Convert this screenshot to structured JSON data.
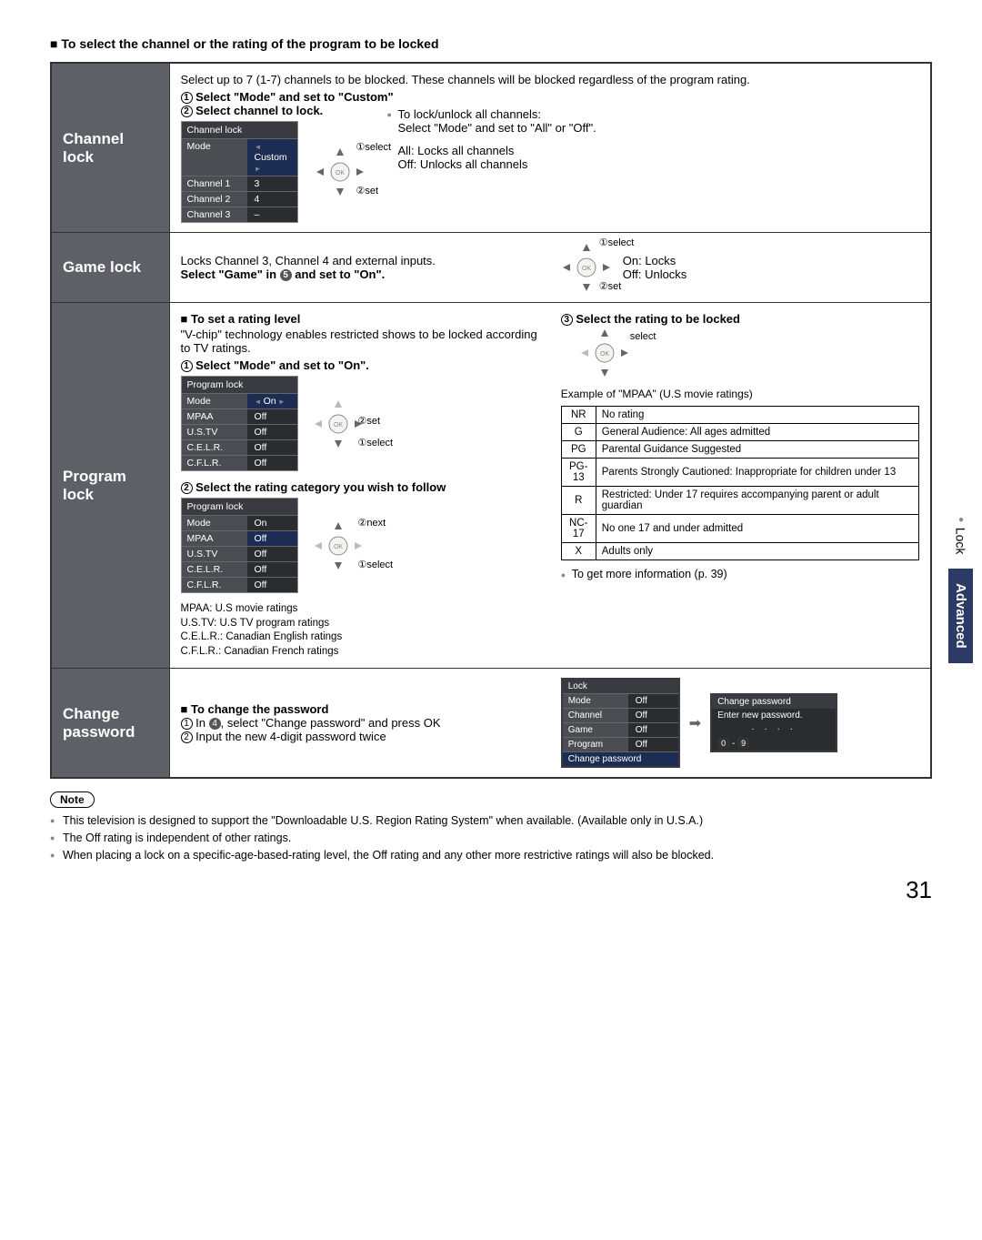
{
  "page": {
    "heading": "To select the channel or the rating of the program to be locked",
    "number": "31"
  },
  "sidetabs": {
    "lock": "Lock",
    "advanced": "Advanced"
  },
  "channel_lock": {
    "label": "Channel lock",
    "intro": "Select up to 7 (1-7) channels to be blocked. These channels will be blocked regardless of the program rating.",
    "step1": "Select \"Mode\" and set to \"Custom\"",
    "step2": "Select channel to lock.",
    "menu_title": "Channel lock",
    "rows": [
      {
        "l": "Mode",
        "r": "Custom",
        "sel": true,
        "arrows": true
      },
      {
        "l": "Channel 1",
        "r": "3"
      },
      {
        "l": "Channel 2",
        "r": "4"
      },
      {
        "l": "Channel 3",
        "r": "–"
      }
    ],
    "dpad_labels": {
      "a": "①select",
      "b": "②set"
    },
    "r_line1": "To lock/unlock all channels:",
    "r_line2": "Select \"Mode\" and set to \"All\" or \"Off\".",
    "r_line3": "All:  Locks all channels",
    "r_line4": "Off: Unlocks all channels"
  },
  "game_lock": {
    "label": "Game lock",
    "line1": "Locks Channel 3, Channel 4 and external inputs.",
    "line2_a": "Select \"Game\" in ",
    "line2_b": " and set to \"On\".",
    "dpad_labels": {
      "a": "①select",
      "b": "②set"
    },
    "on": "On:  Locks",
    "off": "Off:  Unlocks"
  },
  "program_lock": {
    "label": "Program lock",
    "h1": "To set a rating level",
    "desc": "\"V-chip\" technology enables restricted shows to be locked according to TV ratings.",
    "step1": "Select \"Mode\" and set to \"On\".",
    "menu_title": "Program lock",
    "rows1": [
      {
        "l": "Mode",
        "r": "On",
        "sel": true,
        "arrows": true
      },
      {
        "l": "MPAA",
        "r": "Off"
      },
      {
        "l": "U.S.TV",
        "r": "Off"
      },
      {
        "l": "C.E.L.R.",
        "r": "Off"
      },
      {
        "l": "C.F.L.R.",
        "r": "Off"
      }
    ],
    "dpad1": {
      "a": "②set",
      "b": "①select"
    },
    "step2": "Select the rating category you wish to follow",
    "rows2": [
      {
        "l": "Mode",
        "r": "On"
      },
      {
        "l": "MPAA",
        "r": "Off",
        "sel": true
      },
      {
        "l": "U.S.TV",
        "r": "Off"
      },
      {
        "l": "C.E.L.R.",
        "r": "Off"
      },
      {
        "l": "C.F.L.R.",
        "r": "Off"
      }
    ],
    "dpad2": {
      "a": "②next",
      "b": "①select"
    },
    "legend": [
      "MPAA:   U.S movie ratings",
      "U.S.TV:  U.S TV program ratings",
      "C.E.L.R.: Canadian English ratings",
      "C.F.L.R.: Canadian French ratings"
    ],
    "step3": "Select the rating to be locked",
    "dpad3_label": "select",
    "example": "Example of \"MPAA\" (U.S movie ratings)",
    "mpaa": [
      {
        "c": "NR",
        "d": "No rating"
      },
      {
        "c": "G",
        "d": "General Audience:  All ages admitted"
      },
      {
        "c": "PG",
        "d": "Parental Guidance Suggested"
      },
      {
        "c": "PG-13",
        "d": "Parents Strongly Cautioned:  Inappropriate for children under 13"
      },
      {
        "c": "R",
        "d": "Restricted:  Under 17 requires accompanying parent or adult guardian"
      },
      {
        "c": "NC-17",
        "d": "No one 17 and under admitted"
      },
      {
        "c": "X",
        "d": "Adults only"
      }
    ],
    "more": "To get more information (p. 39)"
  },
  "change_pw": {
    "label": "Change password",
    "h": "To change the password",
    "s1_a": "In ",
    "s1_b": ", select \"Change password\" and press OK",
    "s2": "Input the new 4-digit password twice",
    "osd1_title": "Lock",
    "osd1_rows": [
      {
        "l": "Mode",
        "r": "Off"
      },
      {
        "l": "Channel",
        "r": "Off"
      },
      {
        "l": "Game",
        "r": "Off"
      },
      {
        "l": "Program",
        "r": "Off"
      }
    ],
    "osd1_last": "Change password",
    "osd2_title": "Change password",
    "osd2_line": "Enter new password.",
    "osd2_dots": "·  ·  ·  ·",
    "keys": "0 - 9"
  },
  "note_label": "Note",
  "notes": [
    "This television is designed to support the  \"Downloadable U.S. Region Rating System\" when available.  (Available only in U.S.A.)",
    "The Off rating is independent of other ratings.",
    "When placing a lock on a specific-age-based-rating level, the Off rating and any other more restrictive ratings will also be blocked."
  ]
}
